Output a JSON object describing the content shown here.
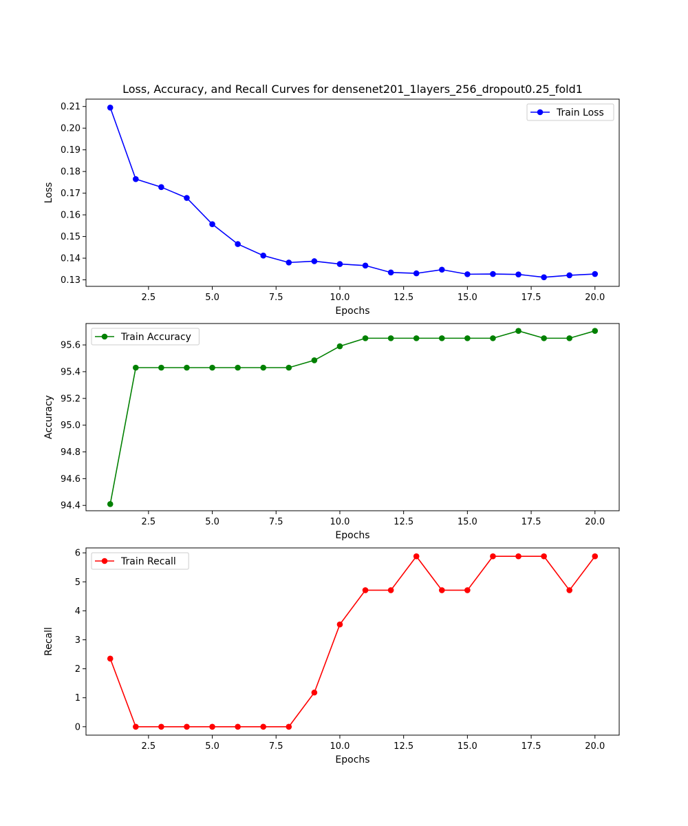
{
  "figure": {
    "title": "Loss, Accuracy, and Recall Curves for densenet201_1layers_256_dropout0.25_fold1"
  },
  "chart_data": [
    {
      "type": "line",
      "xlabel": "Epochs",
      "ylabel": "Loss",
      "x": [
        1,
        2,
        3,
        4,
        5,
        6,
        7,
        8,
        9,
        10,
        11,
        12,
        13,
        14,
        15,
        16,
        17,
        18,
        19,
        20
      ],
      "xlim": [
        0.05,
        20.95
      ],
      "ylim": [
        0.127,
        0.2134
      ],
      "x_ticks": [
        2.5,
        5.0,
        7.5,
        10.0,
        12.5,
        15.0,
        17.5,
        20.0
      ],
      "x_tick_labels": [
        "2.5",
        "5.0",
        "7.5",
        "10.0",
        "12.5",
        "15.0",
        "17.5",
        "20.0"
      ],
      "y_ticks": [
        0.13,
        0.14,
        0.15,
        0.16,
        0.17,
        0.18,
        0.19,
        0.2,
        0.21
      ],
      "y_tick_labels": [
        "0.13",
        "0.14",
        "0.15",
        "0.16",
        "0.17",
        "0.18",
        "0.19",
        "0.20",
        "0.21"
      ],
      "legend_position": "top-right",
      "series": [
        {
          "name": "Train Loss",
          "color": "#0000ff",
          "marker": "circle",
          "values": [
            0.2095,
            0.1765,
            0.1728,
            0.1678,
            0.1557,
            0.1465,
            0.1412,
            0.138,
            0.1386,
            0.1373,
            0.1366,
            0.1334,
            0.133,
            0.1347,
            0.1326,
            0.1327,
            0.1325,
            0.1312,
            0.1321,
            0.1327
          ]
        }
      ]
    },
    {
      "type": "line",
      "xlabel": "Epochs",
      "ylabel": "Accuracy",
      "x": [
        1,
        2,
        3,
        4,
        5,
        6,
        7,
        8,
        9,
        10,
        11,
        12,
        13,
        14,
        15,
        16,
        17,
        18,
        19,
        20
      ],
      "xlim": [
        0.05,
        20.95
      ],
      "ylim": [
        94.36,
        95.76
      ],
      "x_ticks": [
        2.5,
        5.0,
        7.5,
        10.0,
        12.5,
        15.0,
        17.5,
        20.0
      ],
      "x_tick_labels": [
        "2.5",
        "5.0",
        "7.5",
        "10.0",
        "12.5",
        "15.0",
        "17.5",
        "20.0"
      ],
      "y_ticks": [
        94.4,
        94.6,
        94.8,
        95.0,
        95.2,
        95.4,
        95.6
      ],
      "y_tick_labels": [
        "94.4",
        "94.6",
        "94.8",
        "95.0",
        "95.2",
        "95.4",
        "95.6"
      ],
      "legend_position": "top-left",
      "series": [
        {
          "name": "Train Accuracy",
          "color": "#008000",
          "marker": "circle",
          "values": [
            94.41,
            95.43,
            95.43,
            95.43,
            95.43,
            95.43,
            95.43,
            95.43,
            95.485,
            95.59,
            95.65,
            95.65,
            95.65,
            95.65,
            95.65,
            95.65,
            95.705,
            95.65,
            95.65,
            95.705
          ]
        }
      ]
    },
    {
      "type": "line",
      "xlabel": "Epochs",
      "ylabel": "Recall",
      "x": [
        1,
        2,
        3,
        4,
        5,
        6,
        7,
        8,
        9,
        10,
        11,
        12,
        13,
        14,
        15,
        16,
        17,
        18,
        19,
        20
      ],
      "xlim": [
        0.05,
        20.95
      ],
      "ylim": [
        -0.29,
        6.17
      ],
      "x_ticks": [
        2.5,
        5.0,
        7.5,
        10.0,
        12.5,
        15.0,
        17.5,
        20.0
      ],
      "x_tick_labels": [
        "2.5",
        "5.0",
        "7.5",
        "10.0",
        "12.5",
        "15.0",
        "17.5",
        "20.0"
      ],
      "y_ticks": [
        0,
        1,
        2,
        3,
        4,
        5,
        6
      ],
      "y_tick_labels": [
        "0",
        "1",
        "2",
        "3",
        "4",
        "5",
        "6"
      ],
      "legend_position": "top-left",
      "series": [
        {
          "name": "Train Recall",
          "color": "#ff0000",
          "marker": "circle",
          "values": [
            2.35,
            0,
            0,
            0,
            0,
            0,
            0,
            0,
            1.18,
            3.53,
            4.71,
            4.71,
            5.88,
            4.71,
            4.71,
            5.88,
            5.88,
            5.88,
            4.71,
            5.88
          ]
        }
      ]
    }
  ]
}
